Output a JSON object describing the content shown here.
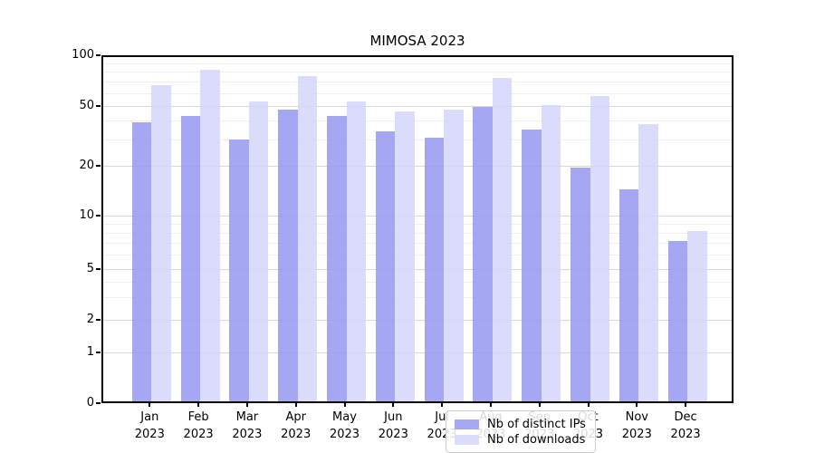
{
  "chart_data": {
    "type": "bar",
    "title": "MIMOSA 2023",
    "categories": [
      "Jan",
      "Feb",
      "Mar",
      "Apr",
      "May",
      "Jun",
      "Jul",
      "Aug",
      "Sep",
      "Oct",
      "Nov",
      "Dec"
    ],
    "year_label": "2023",
    "series": [
      {
        "name": "Nb of distinct IPs",
        "color": "#a6a8f2",
        "values": [
          38,
          42,
          29,
          46,
          42,
          33,
          30,
          48,
          34,
          19,
          14,
          7
        ]
      },
      {
        "name": "Nb of downloads",
        "color": "#dbdcfa",
        "values": [
          65,
          80,
          52,
          74,
          52,
          45,
          46,
          72,
          50,
          56,
          37,
          8
        ]
      }
    ],
    "xlabel": "",
    "ylabel": "",
    "yscale": "symlog",
    "ylim": [
      0,
      100
    ],
    "yticks": [
      0,
      1,
      2,
      5,
      10,
      20,
      50,
      100
    ],
    "ytick_labels": [
      "0",
      "1",
      "2",
      "5",
      "10",
      "20",
      "50",
      "100"
    ],
    "minor_gridlines": [
      3,
      4,
      6,
      7,
      8,
      9,
      30,
      40,
      60,
      70,
      80,
      90
    ],
    "grid": true,
    "legend_position": "lower center"
  }
}
